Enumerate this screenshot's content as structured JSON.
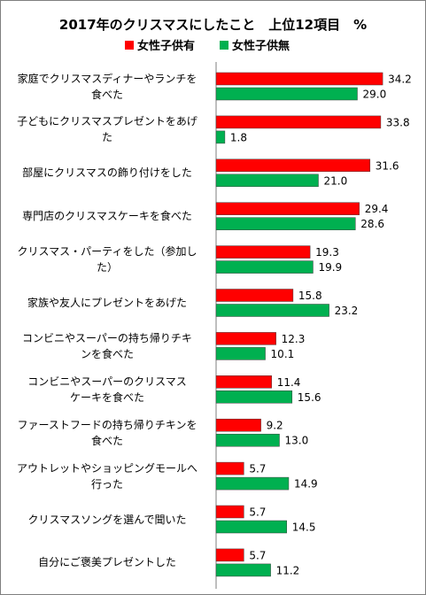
{
  "chart_data": {
    "type": "bar",
    "orientation": "horizontal",
    "title": "2017年のクリスマスにしたこと　上位12項目　%",
    "legend_position": "top",
    "grid": false,
    "xlim": [
      0,
      40
    ],
    "categories": [
      "家庭でクリスマスディナーやランチを\n食べた",
      "子どもにクリスマスプレゼントをあげ\nた",
      "部屋にクリスマスの飾り付けをした",
      "専門店のクリスマスケーキを食べた",
      "クリスマス・パーティをした（参加し\nた）",
      "家族や友人にプレゼントをあげた",
      "コンビニやスーパーの持ち帰りチキ\nンを食べた",
      "コンビニやスーパーのクリスマス\nケーキを食べた",
      "ファーストフードの持ち帰りチキンを\n食べた",
      "アウトレットやショッピングモールへ\n行った",
      "クリスマスソングを選んで聞いた",
      "自分にご褒美プレゼントした"
    ],
    "series": [
      {
        "name": "女性子供有",
        "color": "#ff0000",
        "values": [
          34.2,
          33.8,
          31.6,
          29.4,
          19.3,
          15.8,
          12.3,
          11.4,
          9.2,
          5.7,
          5.7,
          5.7
        ]
      },
      {
        "name": "女性子供無",
        "color": "#00b050",
        "values": [
          29.0,
          1.8,
          21.0,
          28.6,
          19.9,
          23.2,
          10.1,
          15.6,
          13.0,
          14.9,
          14.5,
          11.2
        ]
      }
    ]
  }
}
